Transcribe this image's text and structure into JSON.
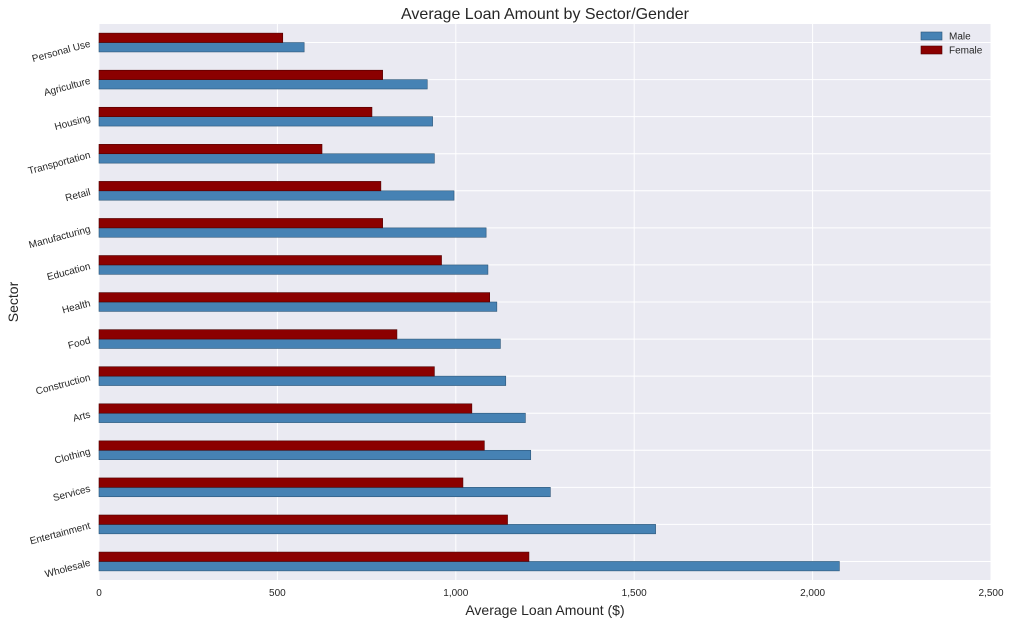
{
  "chart_data": {
    "type": "bar",
    "orientation": "horizontal",
    "title": "Average Loan Amount by Sector/Gender",
    "xlabel": "Average Loan Amount ($)",
    "ylabel": "Sector",
    "xlim": [
      0,
      2500
    ],
    "xticks": [
      0,
      500,
      1000,
      1500,
      2000,
      2500
    ],
    "xtick_labels": [
      "0",
      "500",
      "1,000",
      "1,500",
      "2,000",
      "2,500"
    ],
    "grid": true,
    "legend_position": "top-right",
    "categories": [
      "Wholesale",
      "Entertainment",
      "Services",
      "Clothing",
      "Arts",
      "Construction",
      "Food",
      "Health",
      "Education",
      "Manufacturing",
      "Retail",
      "Transportation",
      "Housing",
      "Agriculture",
      "Personal Use"
    ],
    "series": [
      {
        "name": "Male",
        "color": "#4682b4",
        "values": [
          2075,
          1560,
          1265,
          1210,
          1195,
          1140,
          1125,
          1115,
          1090,
          1085,
          995,
          940,
          935,
          920,
          575
        ]
      },
      {
        "name": "Female",
        "color": "#8b0000",
        "values": [
          1205,
          1145,
          1020,
          1080,
          1045,
          940,
          835,
          1095,
          960,
          795,
          790,
          625,
          765,
          795,
          515
        ]
      }
    ]
  }
}
